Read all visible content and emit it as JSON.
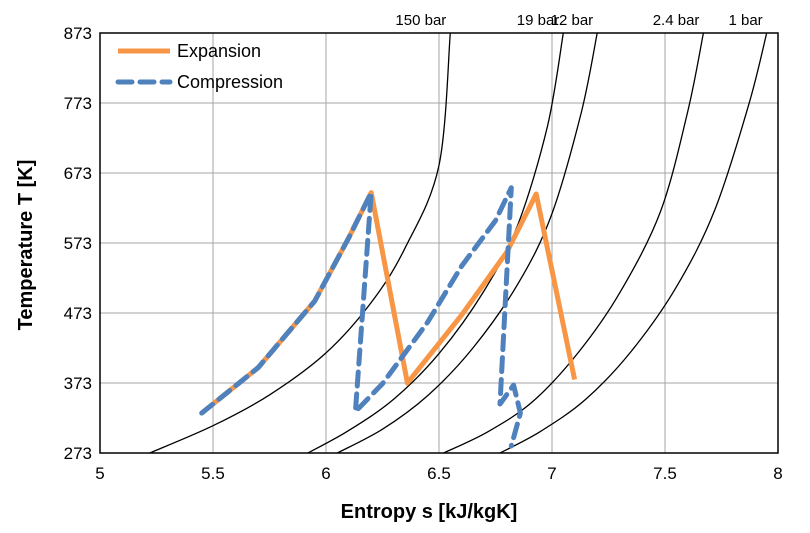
{
  "chart_data": {
    "type": "line",
    "xlabel": "Entropy s [kJ/kgK]",
    "ylabel": "Temperature T [K]",
    "xlim": [
      5,
      8
    ],
    "ylim": [
      273,
      873
    ],
    "xticks": [
      "5",
      "5.5",
      "6",
      "6.5",
      "7",
      "7.5",
      "8"
    ],
    "yticks": [
      "273",
      "373",
      "473",
      "573",
      "673",
      "773",
      "873"
    ],
    "grid": true,
    "legend_position": "top-left",
    "isobars": [
      {
        "label": "150 bar",
        "x": [
          5.22,
          5.5,
          5.75,
          6.0,
          6.2,
          6.35,
          6.5,
          6.55
        ],
        "y": [
          273,
          312,
          356,
          416,
          488,
          566,
          684,
          873
        ]
      },
      {
        "label": "19 bar",
        "x": [
          5.92,
          6.1,
          6.3,
          6.5,
          6.7,
          6.85,
          6.98,
          7.05
        ],
        "y": [
          273,
          305,
          350,
          415,
          505,
          600,
          740,
          873
        ]
      },
      {
        "label": "12 bar",
        "x": [
          6.05,
          6.25,
          6.45,
          6.65,
          6.85,
          7.0,
          7.13,
          7.2
        ],
        "y": [
          273,
          307,
          355,
          423,
          515,
          615,
          760,
          873
        ]
      },
      {
        "label": "2.4 bar",
        "x": [
          6.52,
          6.72,
          6.92,
          7.12,
          7.3,
          7.48,
          7.6,
          7.67
        ],
        "y": [
          273,
          304,
          348,
          418,
          502,
          618,
          760,
          873
        ]
      },
      {
        "label": "1 bar",
        "x": [
          6.77,
          6.95,
          7.15,
          7.35,
          7.55,
          7.72,
          7.87,
          7.95
        ],
        "y": [
          273,
          304,
          350,
          418,
          510,
          620,
          770,
          873
        ]
      }
    ],
    "series": [
      {
        "name": "Expansion",
        "color": "#f79646",
        "style": "solid",
        "x": [
          5.45,
          5.7,
          5.95,
          6.1,
          6.2,
          6.36,
          6.6,
          6.8,
          6.93,
          7.1
        ],
        "y": [
          330,
          395,
          490,
          580,
          645,
          373,
          470,
          560,
          643,
          378
        ]
      },
      {
        "name": "Compression",
        "color": "#4f81bd",
        "style": "dashed",
        "x": [
          5.45,
          5.7,
          5.95,
          6.1,
          6.2,
          6.13,
          6.25,
          6.45,
          6.6,
          6.75,
          6.82,
          6.77,
          6.83,
          6.86,
          6.82
        ],
        "y": [
          330,
          395,
          490,
          580,
          645,
          332,
          372,
          460,
          540,
          605,
          652,
          343,
          370,
          330,
          283
        ]
      }
    ]
  }
}
